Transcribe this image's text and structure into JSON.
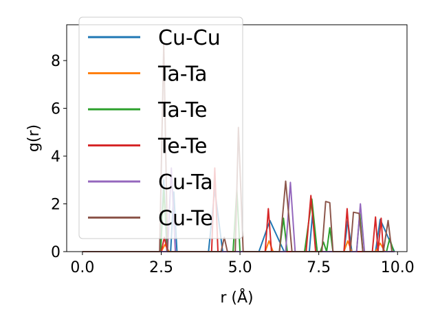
{
  "chart_data": {
    "type": "line",
    "xlabel": "r (Å)",
    "ylabel": "g(r)",
    "xlim": [
      -0.5,
      10.3
    ],
    "ylim": [
      0,
      9.5
    ],
    "xticks": [
      0.0,
      2.5,
      5.0,
      7.5,
      10.0
    ],
    "xtick_labels": [
      "0.0",
      "2.5",
      "5.0",
      "7.5",
      "10.0"
    ],
    "yticks": [
      0,
      2,
      4,
      6,
      8
    ],
    "ytick_labels": [
      "0",
      "2",
      "4",
      "6",
      "8"
    ],
    "grid": false,
    "legend_position": "upper-left",
    "series": [
      {
        "name": "Cu-Cu",
        "color": "#1f77b4",
        "x": [
          0,
          2.48,
          2.58,
          2.68,
          2.8,
          2.9,
          3.0,
          4.0,
          4.2,
          4.45,
          5.6,
          5.95,
          6.4,
          7.2,
          7.3,
          7.45,
          8.3,
          8.42,
          8.55,
          9.3,
          9.45,
          9.9
        ],
        "y": [
          0,
          0,
          3.0,
          0,
          0,
          2.5,
          0,
          0,
          2.6,
          0,
          0,
          1.3,
          0,
          0,
          1.55,
          0,
          0,
          1.3,
          0,
          0,
          1.35,
          0
        ]
      },
      {
        "name": "Ta-Ta",
        "color": "#ff7f0e",
        "x": [
          0,
          2.5,
          2.62,
          2.75,
          5.8,
          5.92,
          6.05,
          8.3,
          8.42,
          8.55,
          9.3,
          9.45,
          9.6,
          9.9
        ],
        "y": [
          0,
          0,
          0.3,
          0,
          0,
          0.45,
          0,
          0,
          0.45,
          0,
          0,
          0.35,
          0,
          0
        ]
      },
      {
        "name": "Ta-Te",
        "color": "#2ca02c",
        "x": [
          0,
          2.48,
          2.58,
          2.7,
          4.78,
          4.9,
          5.0,
          6.25,
          6.38,
          6.5,
          7.05,
          7.28,
          7.45,
          7.55,
          7.65,
          7.75,
          7.85,
          7.95,
          8.7,
          8.8,
          8.9,
          9.65,
          9.75,
          9.88
        ],
        "y": [
          0,
          0,
          2.6,
          0,
          0,
          2.6,
          0,
          0,
          1.4,
          0,
          0,
          2.2,
          0,
          0,
          0.4,
          0,
          1.0,
          0,
          0,
          1.6,
          0,
          0,
          0.55,
          0
        ]
      },
      {
        "name": "Te-Te",
        "color": "#d62728",
        "x": [
          0,
          2.5,
          2.6,
          2.7,
          4.1,
          4.2,
          4.3,
          5.8,
          5.9,
          6.0,
          7.1,
          7.25,
          7.4,
          8.3,
          8.4,
          8.5,
          9.2,
          9.3,
          9.38,
          9.48,
          9.55
        ],
        "y": [
          0,
          0,
          0.6,
          0,
          0,
          3.5,
          0,
          0,
          1.8,
          0,
          0,
          2.35,
          0,
          0,
          1.8,
          0,
          0,
          1.45,
          0,
          1.4,
          0
        ]
      },
      {
        "name": "Cu-Ta",
        "color": "#9467bd",
        "x": [
          0,
          2.7,
          2.82,
          2.95,
          6.45,
          6.6,
          6.75,
          8.7,
          8.82,
          8.95,
          9.9
        ],
        "y": [
          0,
          0,
          3.5,
          0,
          0,
          2.9,
          0,
          0,
          2.0,
          0,
          0
        ]
      },
      {
        "name": "Cu-Te",
        "color": "#8c564b",
        "x": [
          0,
          2.45,
          2.58,
          2.7,
          4.4,
          4.5,
          4.6,
          4.85,
          4.95,
          5.1,
          6.25,
          6.45,
          6.65,
          7.6,
          7.72,
          7.85,
          7.95,
          8.5,
          8.6,
          8.78,
          8.9,
          9.55,
          9.7,
          9.82
        ],
        "y": [
          0,
          0,
          8.7,
          0,
          0,
          0.6,
          0,
          0,
          5.2,
          0,
          0,
          2.95,
          0,
          0,
          2.1,
          2.05,
          0,
          0,
          1.65,
          1.6,
          0,
          0,
          1.3,
          0
        ]
      }
    ]
  }
}
